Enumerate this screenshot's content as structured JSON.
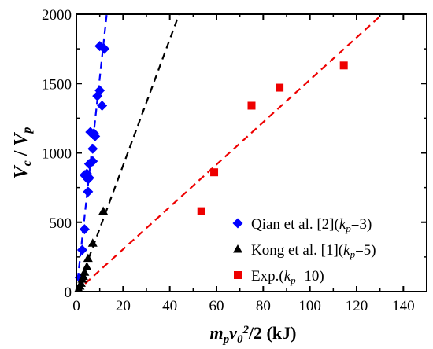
{
  "chart_data": {
    "type": "scatter",
    "title": "",
    "xlabel_parts": [
      {
        "text": "m",
        "style": "italic"
      },
      {
        "text": "p",
        "style": "italic-sub"
      },
      {
        "text": "v",
        "style": "italic"
      },
      {
        "text": "0",
        "style": "italic-sub"
      },
      {
        "text": "2",
        "style": "sup"
      },
      {
        "text": "/2 (kJ)",
        "style": "normal"
      }
    ],
    "ylabel_parts": [
      {
        "text": "V",
        "style": "italic"
      },
      {
        "text": "c",
        "style": "italic-sub"
      },
      {
        "text": " / ",
        "style": "normal"
      },
      {
        "text": "V",
        "style": "italic"
      },
      {
        "text": "p",
        "style": "italic-sub"
      }
    ],
    "xlim": [
      0,
      150
    ],
    "ylim": [
      0,
      2000
    ],
    "xticks": [
      0,
      20,
      40,
      60,
      80,
      100,
      120,
      140
    ],
    "yticks": [
      0,
      500,
      1000,
      1500,
      2000
    ],
    "xtick_labels": [
      "0",
      "20",
      "40",
      "60",
      "80",
      "100",
      "120",
      "140"
    ],
    "ytick_labels": [
      "0",
      "500",
      "1000",
      "1500",
      "2000"
    ],
    "grid": false,
    "legend_position": "bottom-right",
    "series": [
      {
        "legend_parts": [
          {
            "text": "Qian et al. [2](",
            "style": "normal"
          },
          {
            "text": "k",
            "style": "italic"
          },
          {
            "text": "p",
            "style": "italic-sub"
          },
          {
            "text": "=3)",
            "style": "normal"
          }
        ],
        "marker": "diamond",
        "color": "#0000FF",
        "points": [
          [
            1.5,
            100
          ],
          [
            2.5,
            300
          ],
          [
            3.5,
            450
          ],
          [
            3.5,
            840
          ],
          [
            4.5,
            850
          ],
          [
            5.0,
            720
          ],
          [
            5.0,
            810
          ],
          [
            5.5,
            820
          ],
          [
            5.5,
            920
          ],
          [
            6.0,
            1150
          ],
          [
            7.0,
            940
          ],
          [
            7.0,
            1030
          ],
          [
            7.5,
            1140
          ],
          [
            8.0,
            1120
          ],
          [
            9.0,
            1410
          ],
          [
            10.0,
            1450
          ],
          [
            10.0,
            1770
          ],
          [
            11.0,
            1340
          ],
          [
            12.0,
            1750
          ]
        ],
        "fit_line": {
          "x": [
            0,
            13
          ],
          "y": [
            0,
            2000
          ],
          "style": "dashed"
        }
      },
      {
        "legend_parts": [
          {
            "text": "Kong et al. [1](",
            "style": "normal"
          },
          {
            "text": "k",
            "style": "italic"
          },
          {
            "text": "p",
            "style": "italic-sub"
          },
          {
            "text": "=5)",
            "style": "normal"
          }
        ],
        "marker": "triangle",
        "color": "#000000",
        "points": [
          [
            1.0,
            20
          ],
          [
            1.5,
            40
          ],
          [
            2.0,
            60
          ],
          [
            2.5,
            90
          ],
          [
            3.0,
            110
          ],
          [
            3.5,
            140
          ],
          [
            4.5,
            180
          ],
          [
            5.0,
            240
          ],
          [
            7.0,
            350
          ],
          [
            11.5,
            580
          ]
        ],
        "fit_line": {
          "x": [
            0,
            44
          ],
          "y": [
            0,
            2000
          ],
          "style": "dashed"
        }
      },
      {
        "legend_parts": [
          {
            "text": "Exp.(",
            "style": "normal"
          },
          {
            "text": "k",
            "style": "italic"
          },
          {
            "text": "p",
            "style": "italic-sub"
          },
          {
            "text": "=10)",
            "style": "normal"
          }
        ],
        "marker": "square",
        "color": "#EE0000",
        "points": [
          [
            53.5,
            580
          ],
          [
            59,
            860
          ],
          [
            75,
            1340
          ],
          [
            87,
            1470
          ],
          [
            114.5,
            1630
          ]
        ],
        "fit_line": {
          "x": [
            0,
            131
          ],
          "y": [
            0,
            2000
          ],
          "style": "dashed"
        }
      }
    ]
  }
}
